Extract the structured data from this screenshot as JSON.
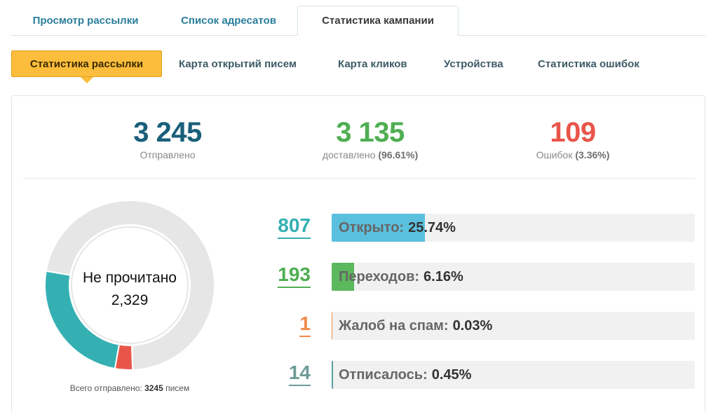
{
  "top_tabs": [
    {
      "label": "Просмотр рассылки"
    },
    {
      "label": "Список адресатов"
    },
    {
      "label": "Статистика кампании"
    }
  ],
  "sub_tabs": [
    {
      "label": "Статистика рассылки"
    },
    {
      "label": "Карта открытий писем"
    },
    {
      "label": "Карта кликов"
    },
    {
      "label": "Устройства"
    },
    {
      "label": "Статистика ошибок"
    }
  ],
  "summary": {
    "sent": {
      "value": "3 245",
      "label": "Отправлено",
      "color": "#1a5f7a"
    },
    "delivered": {
      "value": "3 135",
      "label": "доставлено",
      "pct": "(96.61%)",
      "color": "#4fae52"
    },
    "errors": {
      "value": "109",
      "label": "Ошибок",
      "pct": "(3.36%)",
      "color": "#e8564a"
    }
  },
  "donut": {
    "center_label": "Не прочитано",
    "center_value": "2,329",
    "caption_prefix": "Всего отправлено:",
    "caption_value": "3245",
    "caption_suffix": "писем",
    "segments": [
      {
        "value": 2329,
        "color": "#e6e6e6"
      },
      {
        "value": 807,
        "color": "#34b0b3"
      },
      {
        "value": 109,
        "color": "#e8564a"
      }
    ]
  },
  "metrics": [
    {
      "count": "807",
      "label": "Открыто:",
      "pct": "25.74%",
      "fraction": 0.2574,
      "num_color": "#34b0b3",
      "bar_color": "#5bc0de"
    },
    {
      "count": "193",
      "label": "Переходов:",
      "pct": "6.16%",
      "fraction": 0.0616,
      "num_color": "#4fae52",
      "bar_color": "#5cb85c"
    },
    {
      "count": "1",
      "label": "Жалоб на спам:",
      "pct": "0.03%",
      "fraction": 0.0003,
      "num_color": "#f08a4b",
      "bar_color": "#f08a4b"
    },
    {
      "count": "14",
      "label": "Отписалось:",
      "pct": "0.45%",
      "fraction": 0.0045,
      "num_color": "#6e9c98",
      "bar_color": "#5a9ea0"
    }
  ]
}
